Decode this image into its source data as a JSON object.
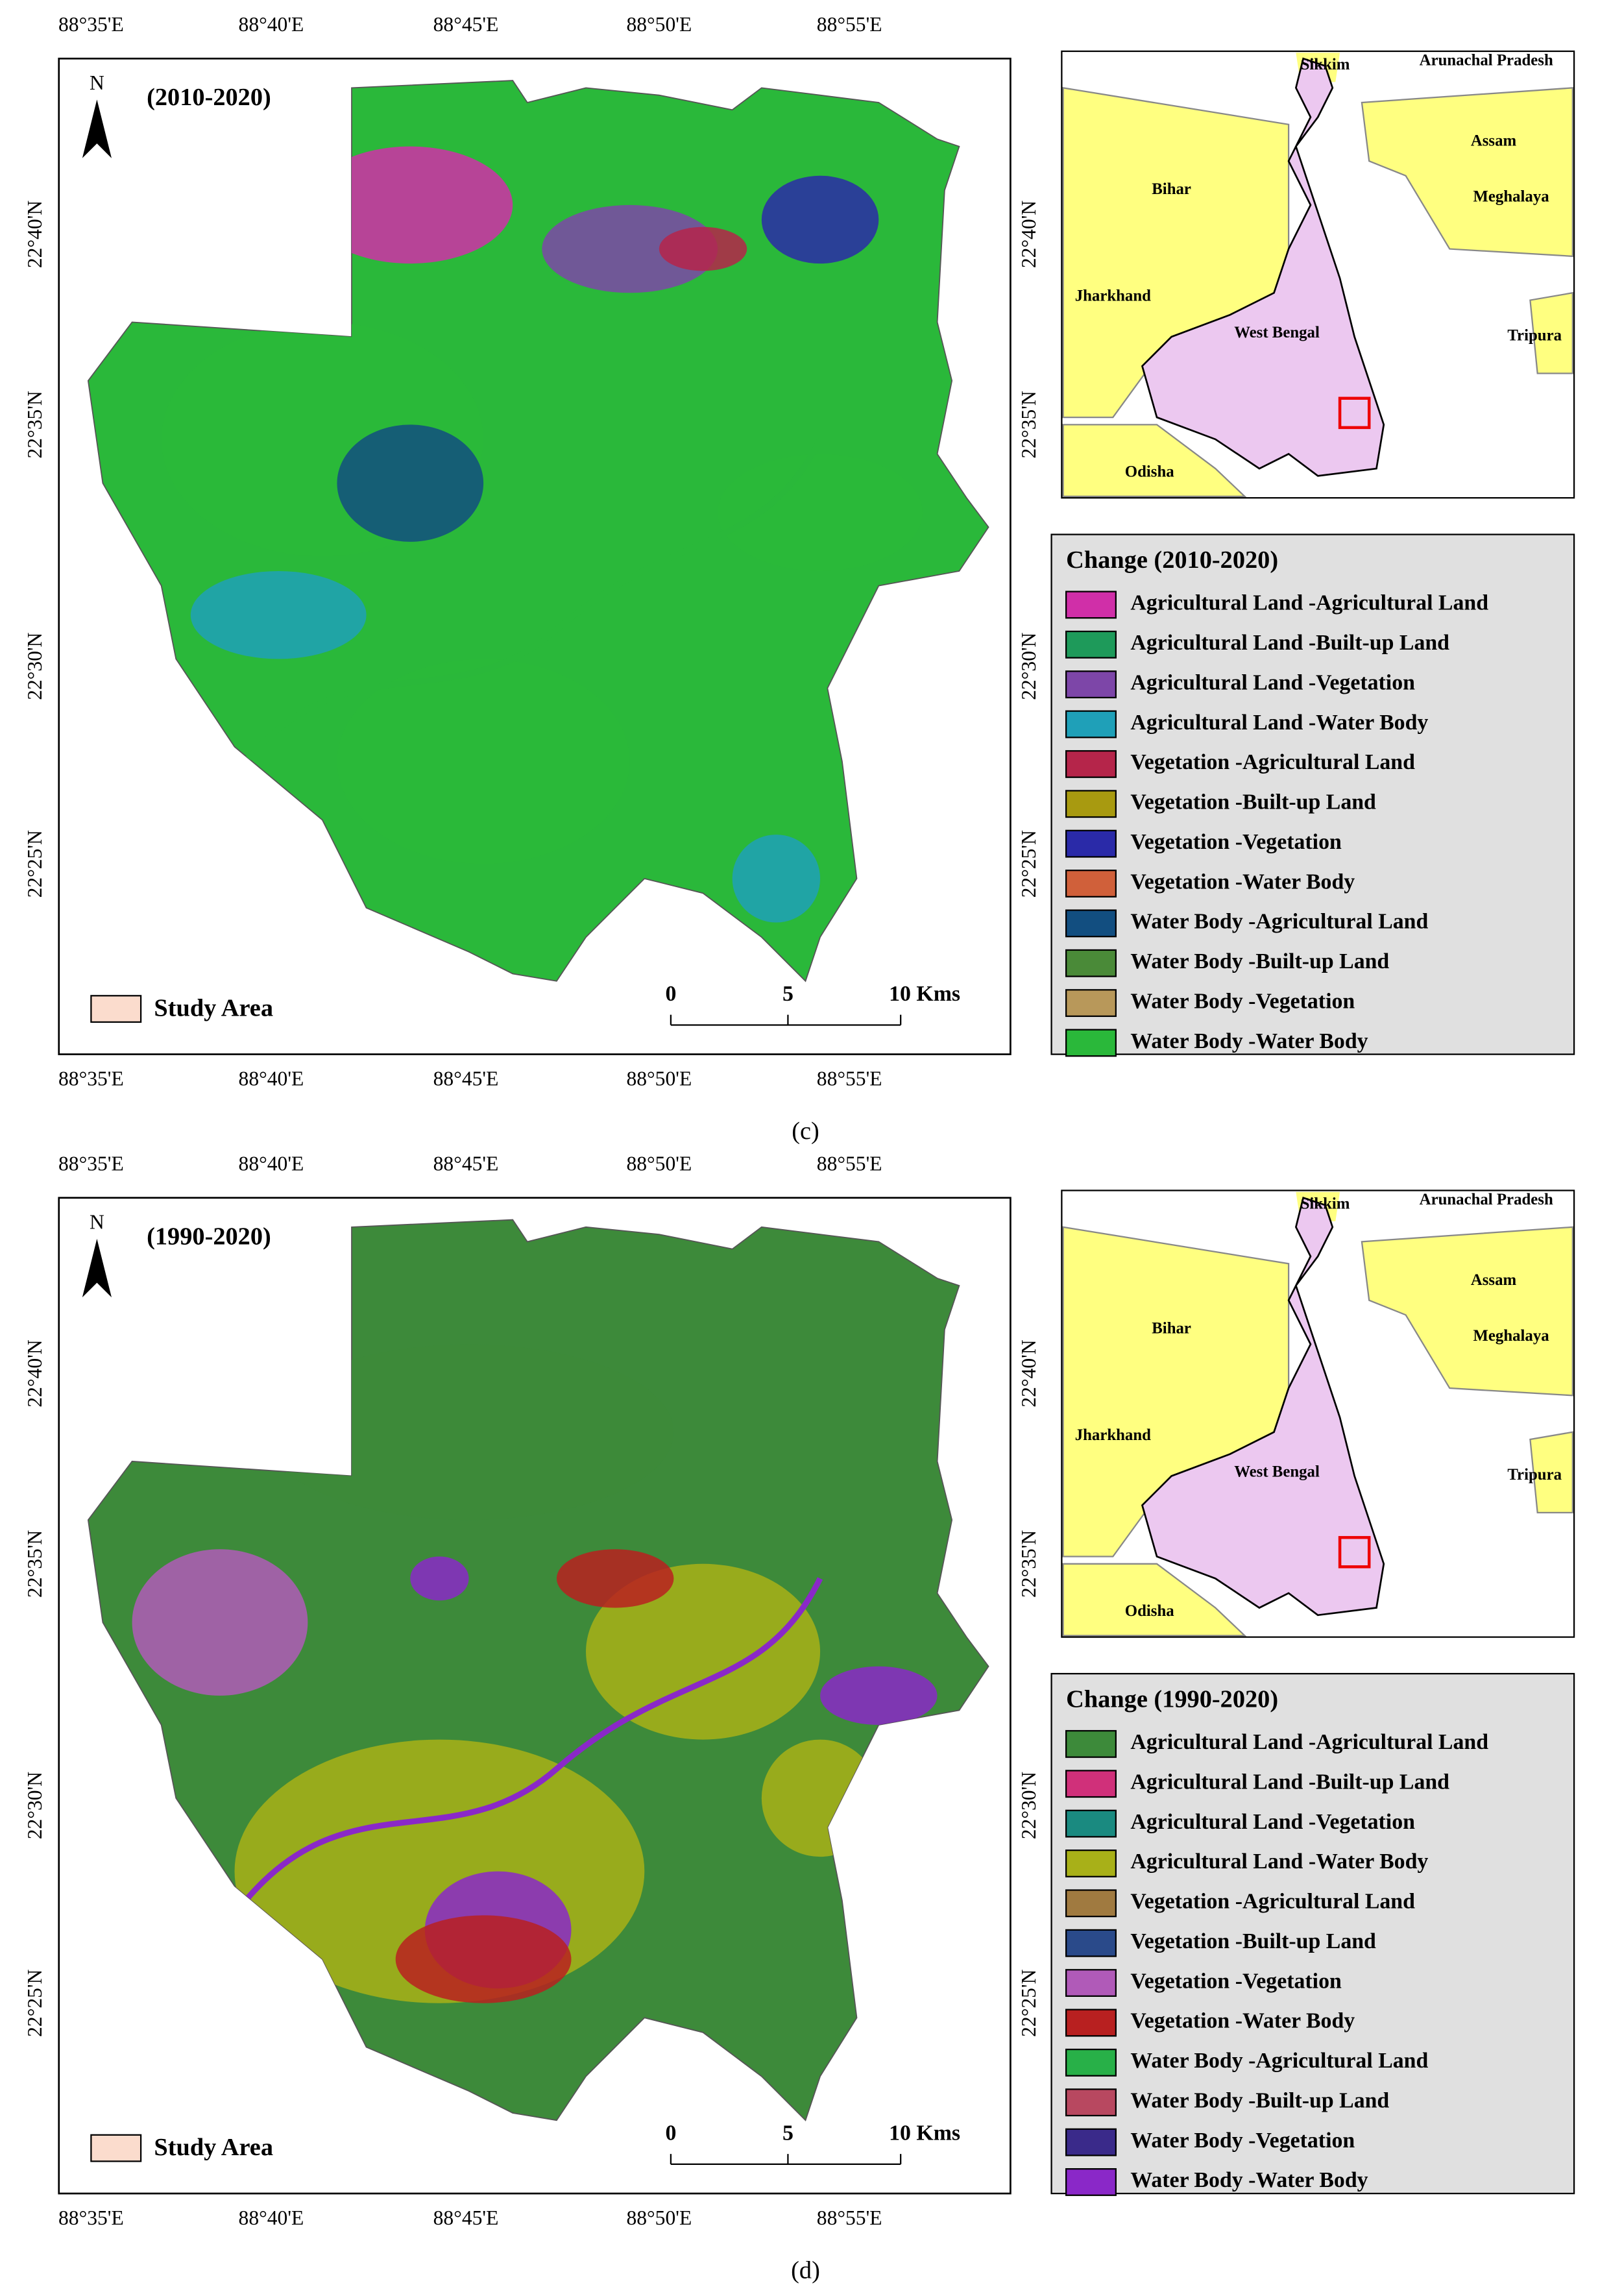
{
  "panels": [
    {
      "title": "(2010-2020)",
      "north": "N",
      "lon_labels": [
        "88°35'E",
        "88°40'E",
        "88°45'E",
        "88°50'E",
        "88°55'E"
      ],
      "lat_labels": [
        "22°40'N",
        "22°35'N",
        "22°30'N",
        "22°25'N"
      ],
      "inset_labels": [
        "Sikkim",
        "Arunachal Pradesh",
        "Assam",
        "Bihar",
        "Meghalaya",
        "Jharkhand",
        "West Bengal",
        "Tripura",
        "Odisha"
      ],
      "legend_title": "Change (2010-2020)",
      "legend": [
        {
          "label": "Agricultural Land -Agricultural Land",
          "color": "#d02fa8"
        },
        {
          "label": "Agricultural Land -Built-up Land",
          "color": "#1e9a5a"
        },
        {
          "label": "Agricultural Land -Vegetation",
          "color": "#7d46a8"
        },
        {
          "label": "Agricultural Land -Water Body",
          "color": "#1fa0b8"
        },
        {
          "label": "Vegetation -Agricultural Land",
          "color": "#b5254a"
        },
        {
          "label": "Vegetation -Built-up Land",
          "color": "#a89a10"
        },
        {
          "label": "Vegetation -Vegetation",
          "color": "#2a2aa8"
        },
        {
          "label": "Vegetation -Water Body",
          "color": "#d0603a"
        },
        {
          "label": "Water Body -Agricultural Land",
          "color": "#124e80"
        },
        {
          "label": "Water Body -Built-up Land",
          "color": "#4a8a38"
        },
        {
          "label": "Water Body -Vegetation",
          "color": "#b8985a"
        },
        {
          "label": "Water Body -Water Body",
          "color": "#2ab83a"
        }
      ],
      "study_area": "Study Area",
      "scale_labels": [
        "0",
        "5",
        "10 Kms"
      ],
      "caption": "(c)"
    },
    {
      "title": "(1990-2020)",
      "north": "N",
      "lon_labels": [
        "88°35'E",
        "88°40'E",
        "88°45'E",
        "88°50'E",
        "88°55'E"
      ],
      "lat_labels": [
        "22°40'N",
        "22°35'N",
        "22°30'N",
        "22°25'N"
      ],
      "inset_labels": [
        "Sikkim",
        "Arunachal Pradesh",
        "Assam",
        "Bihar",
        "Meghalaya",
        "Jharkhand",
        "West Bengal",
        "Tripura",
        "Odisha"
      ],
      "legend_title": "Change (1990-2020)",
      "legend": [
        {
          "label": "Agricultural Land -Agricultural Land",
          "color": "#3d8a3a"
        },
        {
          "label": "Agricultural Land -Built-up Land",
          "color": "#d0307a"
        },
        {
          "label": "Agricultural Land -Vegetation",
          "color": "#1a8a80"
        },
        {
          "label": "Agricultural Land -Water Body",
          "color": "#a8b018"
        },
        {
          "label": "Vegetation -Agricultural Land",
          "color": "#a07a40"
        },
        {
          "label": "Vegetation -Built-up Land",
          "color": "#2a4a8a"
        },
        {
          "label": "Vegetation -Vegetation",
          "color": "#b05ab8"
        },
        {
          "label": "Vegetation -Water Body",
          "color": "#b82020"
        },
        {
          "label": "Water Body -Agricultural Land",
          "color": "#28b048"
        },
        {
          "label": "Water Body -Built-up Land",
          "color": "#b84860"
        },
        {
          "label": "Water Body -Vegetation",
          "color": "#3a2a8a"
        },
        {
          "label": "Water Body -Water Body",
          "color": "#8a28c8"
        }
      ],
      "study_area": "Study Area",
      "scale_labels": [
        "0",
        "5",
        "10 Kms"
      ],
      "caption": "(d)"
    }
  ]
}
